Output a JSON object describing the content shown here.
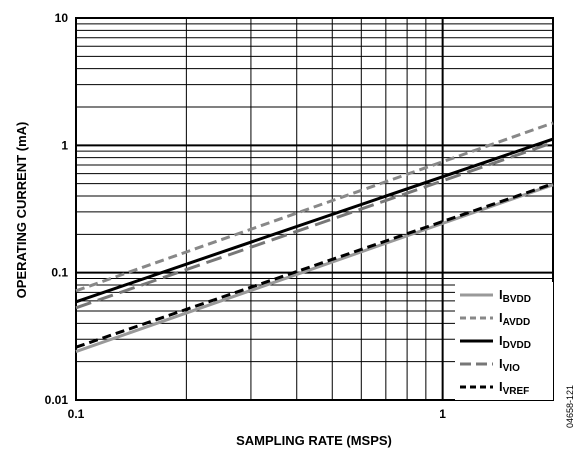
{
  "chart_data": {
    "type": "line",
    "title": "",
    "xlabel": "SAMPLING RATE (MSPS)",
    "ylabel": "OPERATING CURRENT (mA)",
    "x_scale": "log",
    "y_scale": "log",
    "xlim": [
      0.1,
      2
    ],
    "ylim": [
      0.01,
      10
    ],
    "x_ticks": [
      {
        "value": 0.1,
        "label": "0.1"
      },
      {
        "value": 1,
        "label": "1"
      }
    ],
    "y_ticks": [
      {
        "value": 0.01,
        "label": "0.01"
      },
      {
        "value": 0.1,
        "label": "0.1"
      },
      {
        "value": 1,
        "label": "1"
      },
      {
        "value": 10,
        "label": "10"
      }
    ],
    "grid": true,
    "legend_position": "bottom-right",
    "figure_code": "04658-121",
    "series": [
      {
        "name": "I",
        "subscript": "BVDD",
        "style": "solid",
        "color": "#999999",
        "x": [
          0.1,
          2
        ],
        "y": [
          0.024,
          0.49
        ]
      },
      {
        "name": "I",
        "subscript": "AVDD",
        "style": "dashed",
        "color": "#888888",
        "x": [
          0.1,
          2
        ],
        "y": [
          0.072,
          1.5
        ]
      },
      {
        "name": "I",
        "subscript": "DVDD",
        "style": "solid",
        "color": "#000000",
        "x": [
          0.1,
          2
        ],
        "y": [
          0.059,
          1.12
        ]
      },
      {
        "name": "I",
        "subscript": "VIO",
        "style": "longdash",
        "color": "#777777",
        "x": [
          0.1,
          2
        ],
        "y": [
          0.053,
          1.05
        ]
      },
      {
        "name": "I",
        "subscript": "VREF",
        "style": "dashed",
        "color": "#000000",
        "x": [
          0.1,
          2
        ],
        "y": [
          0.026,
          0.5
        ]
      }
    ]
  }
}
